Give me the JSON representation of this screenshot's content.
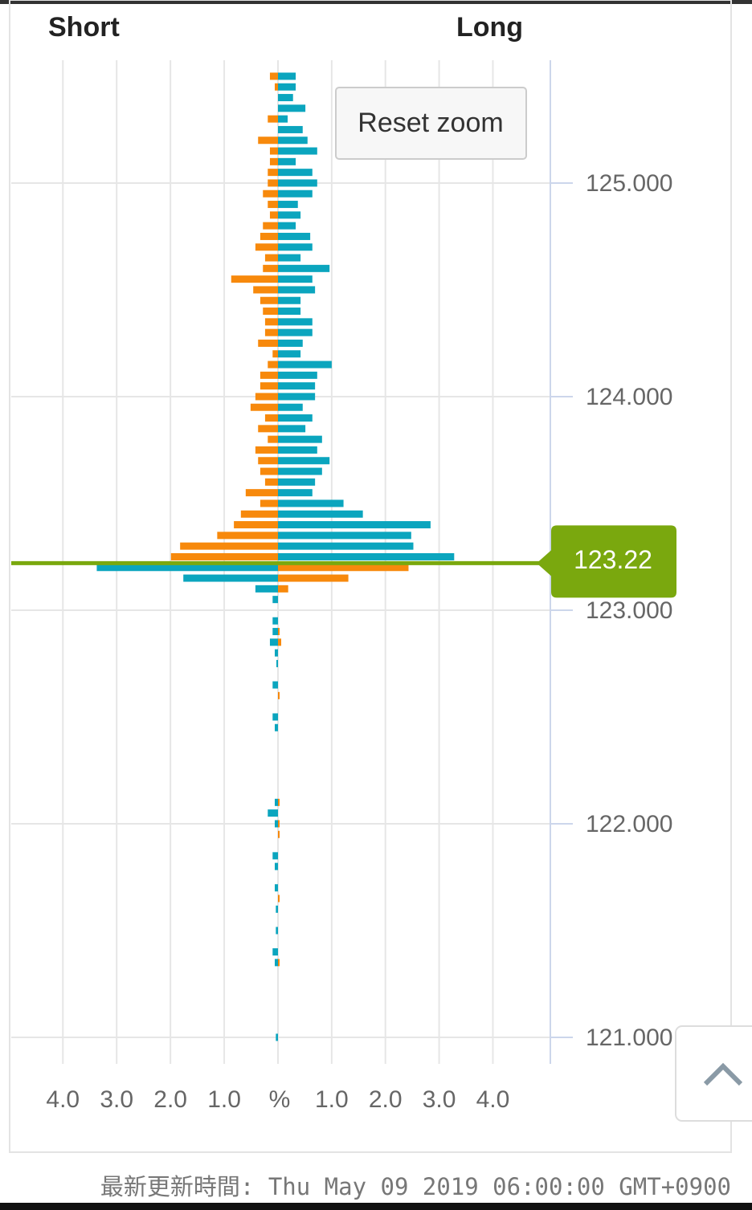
{
  "chart_data": {
    "type": "butterfly-bar",
    "short_header": "Short",
    "long_header": "Long",
    "reset_button": "Reset zoom",
    "footer": "最新更新時間: Thu May 09 2019 06:00:00 GMT+0900",
    "current_price": 123.22,
    "current_color": "#7aa80e",
    "y": [
      125.5,
      125.45,
      125.4,
      125.35,
      125.3,
      125.25,
      125.2,
      125.15,
      125.1,
      125.05,
      125.0,
      124.95,
      124.9,
      124.85,
      124.8,
      124.75,
      124.7,
      124.65,
      124.6,
      124.55,
      124.5,
      124.45,
      124.4,
      124.35,
      124.3,
      124.25,
      124.2,
      124.15,
      124.1,
      124.05,
      124.0,
      123.95,
      123.9,
      123.85,
      123.8,
      123.75,
      123.7,
      123.65,
      123.6,
      123.55,
      123.5,
      123.45,
      123.4,
      123.35,
      123.3,
      123.25,
      123.2,
      123.15,
      123.1,
      123.05,
      122.95,
      122.9,
      122.85,
      122.8,
      122.75,
      122.65,
      122.6,
      122.5,
      122.45,
      122.1,
      122.05,
      122.0,
      121.95,
      121.85,
      121.8,
      121.7,
      121.65,
      121.6,
      121.5,
      121.4,
      121.35,
      121.0
    ],
    "series": [
      {
        "name": "Short",
        "color_above": "#f7890c",
        "color_below": "#0ba5be",
        "values": [
          0.15,
          0.06,
          0,
          0,
          0.19,
          0,
          0.37,
          0.15,
          0.15,
          0.19,
          0.19,
          0.28,
          0.19,
          0.15,
          0.28,
          0.33,
          0.42,
          0.24,
          0.28,
          0.87,
          0.46,
          0.33,
          0.28,
          0.24,
          0.24,
          0.37,
          0.1,
          0.19,
          0.33,
          0.33,
          0.42,
          0.51,
          0.24,
          0.37,
          0.19,
          0.42,
          0.37,
          0.33,
          0.24,
          0.6,
          0.33,
          0.69,
          0.82,
          1.13,
          1.82,
          1.99,
          3.37,
          1.76,
          0.42,
          0.1,
          0.1,
          0.1,
          0.15,
          0.06,
          0.03,
          0.1,
          0,
          0.1,
          0.06,
          0.06,
          0.19,
          0.06,
          0,
          0.1,
          0.06,
          0.06,
          0,
          0.04,
          0.04,
          0.1,
          0.06,
          0.04
        ]
      },
      {
        "name": "Long",
        "color_above": "#0ba5be",
        "color_below": "#f7890c",
        "values": [
          0.33,
          0.33,
          0.28,
          0.51,
          0.18,
          0.46,
          0.55,
          0.73,
          0.33,
          0.64,
          0.73,
          0.64,
          0.37,
          0.42,
          0.33,
          0.6,
          0.64,
          0.42,
          0.96,
          0.64,
          0.69,
          0.42,
          0.42,
          0.64,
          0.64,
          0.46,
          0.42,
          1.0,
          0.73,
          0.69,
          0.69,
          0.46,
          0.64,
          0.51,
          0.82,
          0.73,
          0.96,
          0.82,
          0.69,
          0.64,
          1.22,
          1.58,
          2.84,
          2.48,
          2.52,
          3.28,
          2.43,
          1.31,
          0.19,
          0,
          0,
          0.03,
          0.06,
          0,
          0,
          0,
          0.03,
          0,
          0,
          0.03,
          0,
          0.03,
          0.03,
          0,
          0,
          0,
          0.03,
          0,
          0,
          0,
          0.03,
          0
        ]
      }
    ],
    "ylim": [
      120.887,
      125.575
    ],
    "yticks": [
      {
        "value": 125,
        "label": "125.000"
      },
      {
        "value": 124,
        "label": "124.000"
      },
      {
        "value": 123,
        "label": "123.000"
      },
      {
        "value": 122,
        "label": "122.000"
      },
      {
        "value": 121,
        "label": "121.000"
      }
    ],
    "xlim_short": [
      0,
      4.96
    ],
    "xlim_long": [
      0,
      5.07
    ],
    "xticks_short": [
      {
        "value": 4,
        "label": "4.0"
      },
      {
        "value": 3,
        "label": "3.0"
      },
      {
        "value": 2,
        "label": "2.0"
      },
      {
        "value": 1,
        "label": "1.0"
      }
    ],
    "xticks_long": [
      {
        "value": 1,
        "label": "1.0"
      },
      {
        "value": 2,
        "label": "2.0"
      },
      {
        "value": 3,
        "label": "3.0"
      },
      {
        "value": 4,
        "label": "4.0"
      }
    ],
    "xlabel": "%",
    "grid": true
  }
}
